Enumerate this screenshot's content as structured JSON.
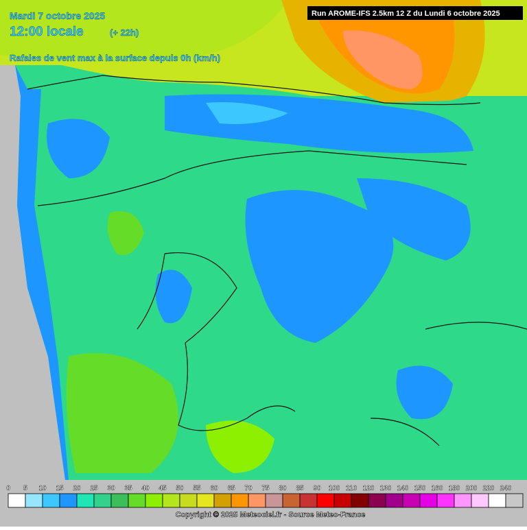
{
  "header": {
    "date": "Mardi 7 octobre 2025",
    "time": "12:00 locale",
    "offset": "(+ 22h)",
    "run": "Run AROME-IFS 2.5km 12 Z du Lundi 6 octobre 2025",
    "parameter": "Rafales de vent max à la surface depuis 0h (km/h)"
  },
  "legend": {
    "labels": [
      "0",
      "5",
      "10",
      "15",
      "20",
      "25",
      "30",
      "35",
      "40",
      "45",
      "50",
      "55",
      "60",
      "65",
      "70",
      "75",
      "80",
      "85",
      "90",
      "100",
      "110",
      "120",
      "130",
      "140",
      "150",
      "160",
      "180",
      "200",
      "220",
      "240"
    ],
    "colors": [
      "#ffffff",
      "#96e6ff",
      "#3cc8ff",
      "#1e96ff",
      "#1ee6b4",
      "#32d28c",
      "#3cbe5a",
      "#64dc28",
      "#8cf000",
      "#b4e61e",
      "#c8dc1e",
      "#e6e61e",
      "#d2a000",
      "#ff9600",
      "#ff9664",
      "#c89696",
      "#c86432",
      "#c83232",
      "#ff0000",
      "#c80000",
      "#820000",
      "#8c0050",
      "#a0008c",
      "#c800b4",
      "#e600e6",
      "#ff32ff",
      "#ff96ff",
      "#ffc8ff",
      "#ffffff",
      "#c8c8c8"
    ]
  },
  "footer": {
    "copyright": "Copyright © 2025 Meteociel.fr - Source Meteo-France"
  }
}
